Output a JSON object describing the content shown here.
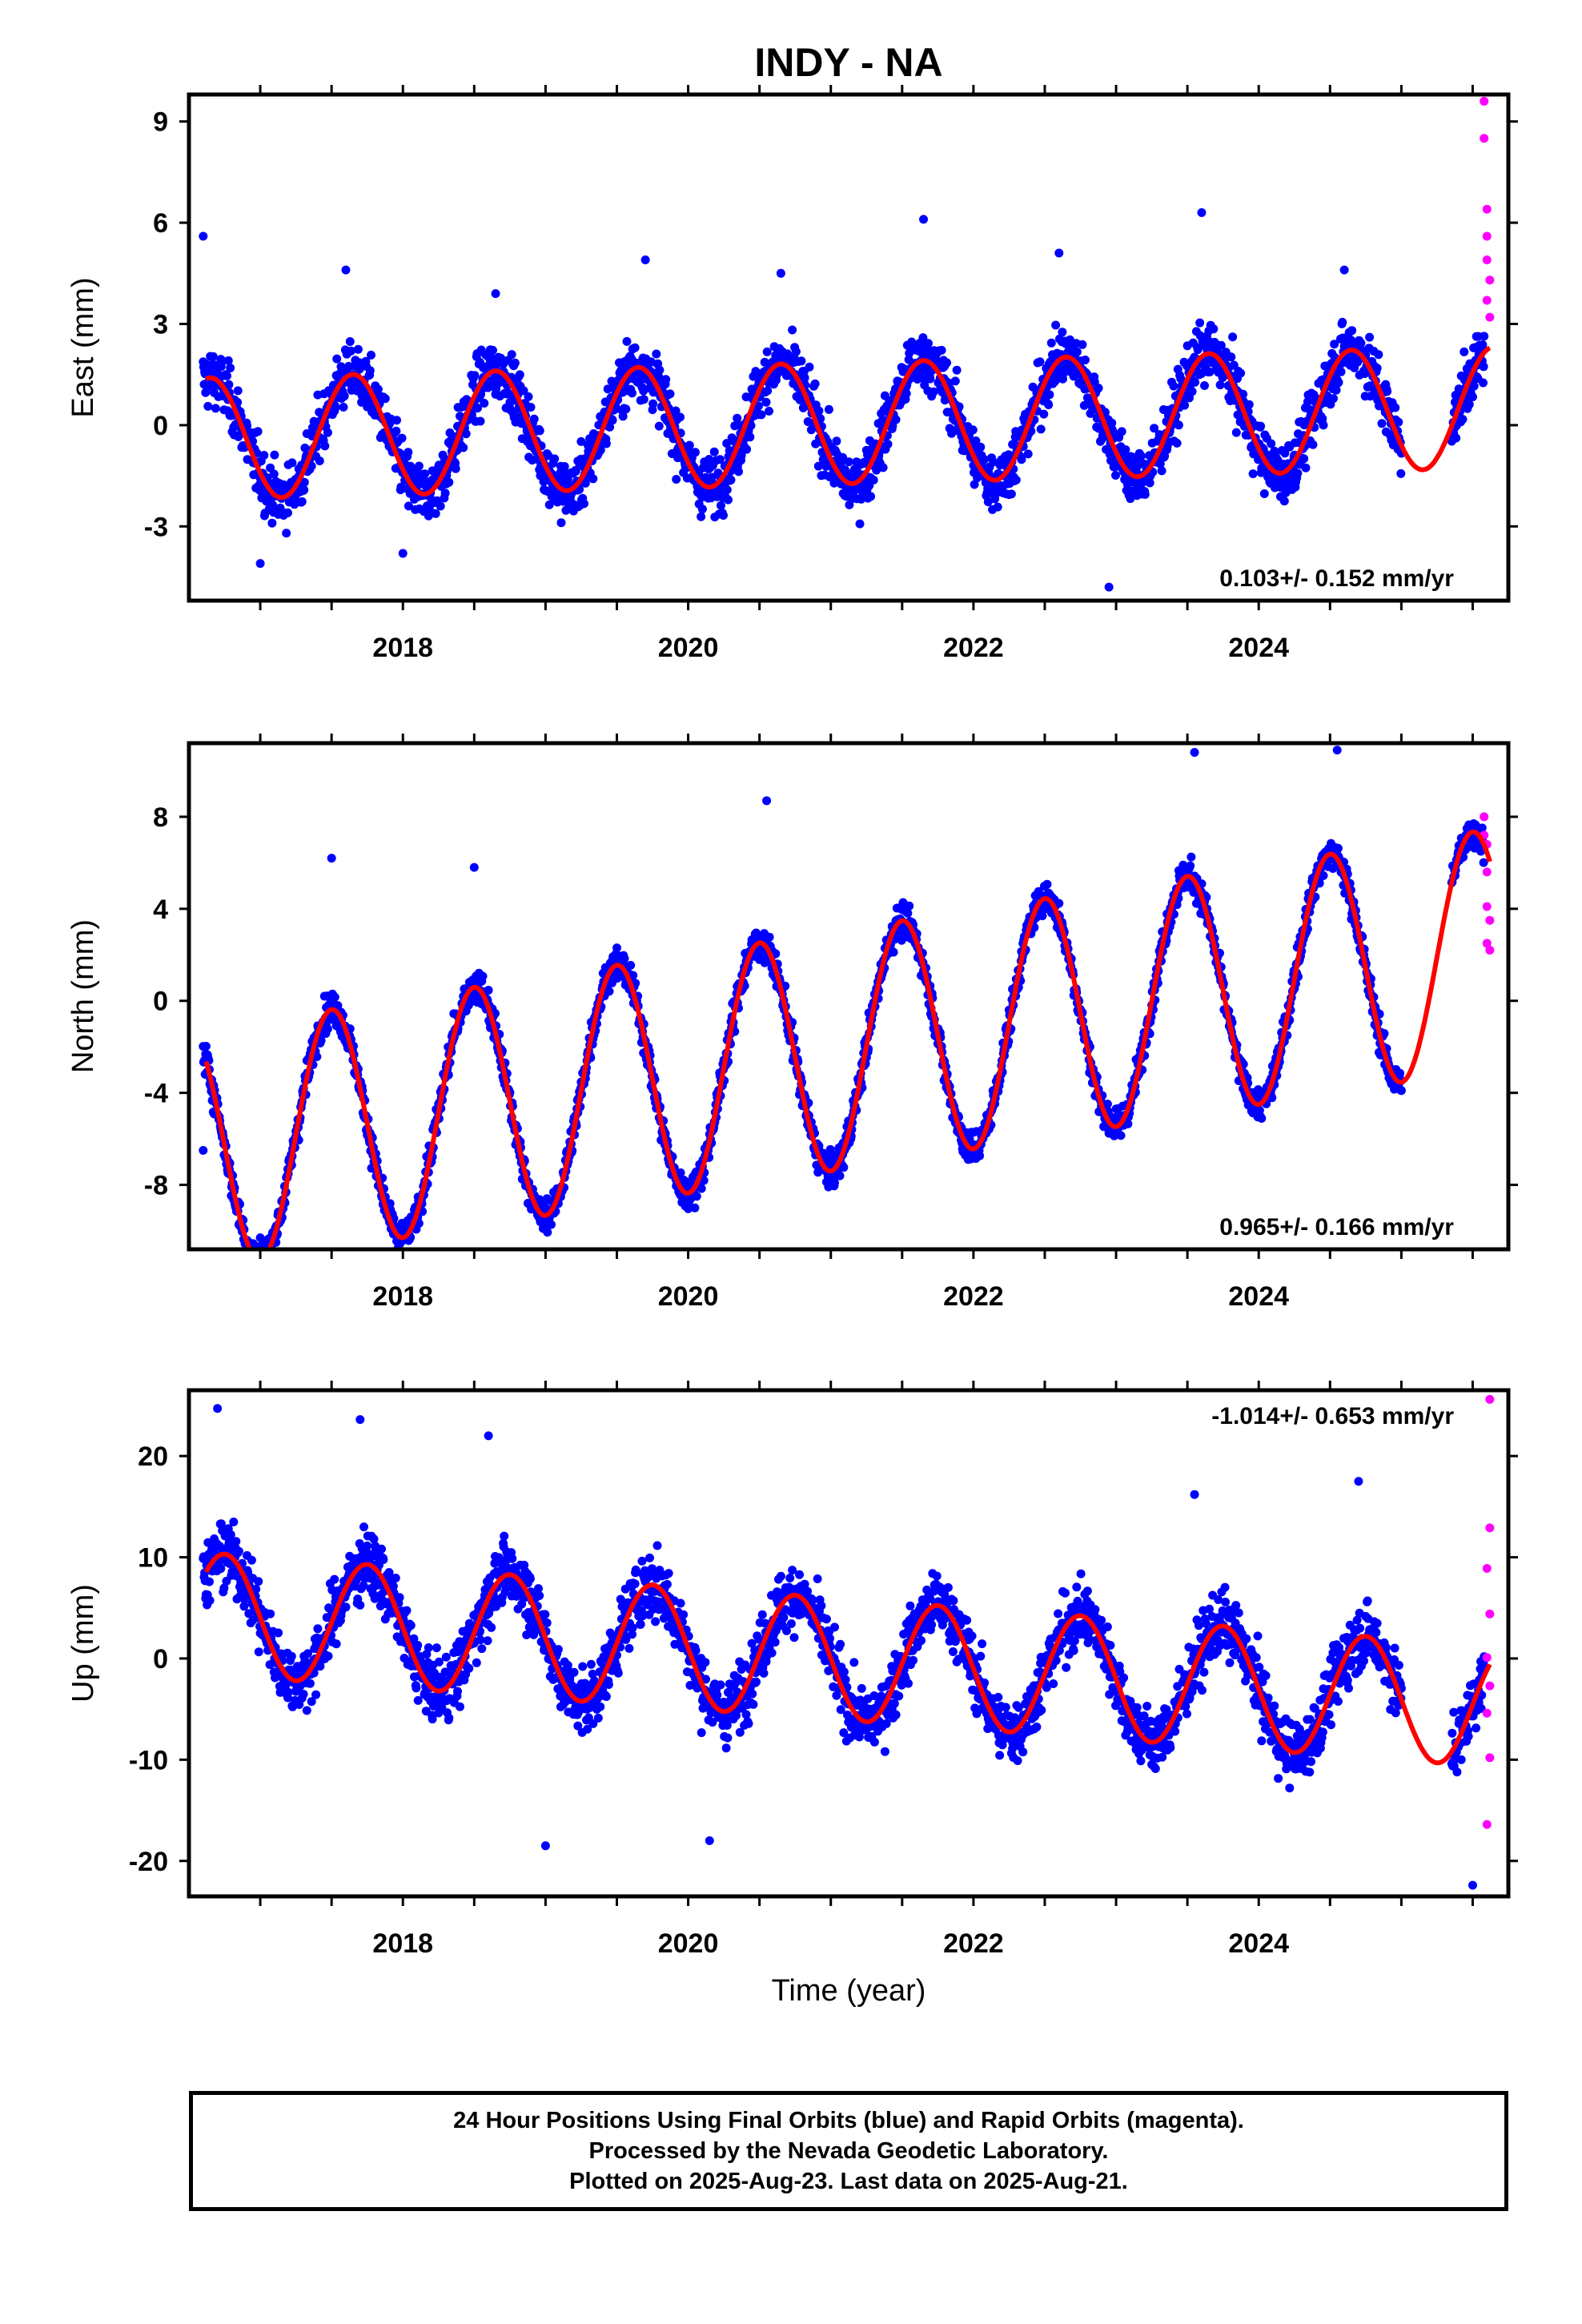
{
  "title": "INDY - NA",
  "chart_data": [
    {
      "type": "scatter",
      "panel": "east",
      "ylabel": "East (mm)",
      "xlabel": "",
      "xticks": [
        "2018",
        "2020",
        "2022",
        "2024"
      ],
      "yticks": [
        "9",
        "6",
        "3",
        "0",
        "-3"
      ],
      "xlim": [
        2016.5,
        2025.75
      ],
      "ylim": [
        -5.2,
        9.8
      ],
      "rate_label": "0.103+/- 0.152 mm/yr",
      "rate_position": "bottom-right",
      "grid": false,
      "colors": {
        "final": "#0000ff",
        "rapid": "#ff00ff",
        "model": "#ff0000"
      },
      "model": {
        "mean": 0.05,
        "trend": 0.103,
        "amplitude": 1.8,
        "peak_phase": 0.65
      },
      "scatter_sd": 1.1,
      "final_points": [
        {
          "x": 2016.6,
          "y": 5.6
        },
        {
          "x": 2017.0,
          "y": -4.1
        },
        {
          "x": 2017.6,
          "y": 4.6
        },
        {
          "x": 2018.0,
          "y": -3.8
        },
        {
          "x": 2018.65,
          "y": 3.9
        },
        {
          "x": 2019.7,
          "y": 4.9
        },
        {
          "x": 2020.65,
          "y": 4.5
        },
        {
          "x": 2021.65,
          "y": 6.1
        },
        {
          "x": 2022.6,
          "y": 5.1
        },
        {
          "x": 2022.95,
          "y": -4.8
        },
        {
          "x": 2023.6,
          "y": 6.3
        },
        {
          "x": 2024.6,
          "y": 4.6
        }
      ],
      "rapid_points": [
        {
          "x": 2025.58,
          "y": 9.6
        },
        {
          "x": 2025.58,
          "y": 8.5
        },
        {
          "x": 2025.6,
          "y": 6.4
        },
        {
          "x": 2025.6,
          "y": 5.6
        },
        {
          "x": 2025.6,
          "y": 4.9
        },
        {
          "x": 2025.62,
          "y": 4.3
        },
        {
          "x": 2025.6,
          "y": 3.7
        },
        {
          "x": 2025.62,
          "y": 3.2
        }
      ],
      "data_end": 2025.58
    },
    {
      "type": "scatter",
      "panel": "north",
      "ylabel": "North (mm)",
      "xlabel": "",
      "xticks": [
        "2018",
        "2020",
        "2022",
        "2024"
      ],
      "yticks": [
        "8",
        "4",
        "0",
        "-4",
        "-8"
      ],
      "xlim": [
        2016.5,
        2025.75
      ],
      "ylim": [
        -10.8,
        11.2
      ],
      "rate_label": "0.965+/- 0.166 mm/yr",
      "rate_position": "bottom-right",
      "grid": false,
      "colors": {
        "final": "#0000ff",
        "rapid": "#ff00ff",
        "model": "#ff0000"
      },
      "model": {
        "mean": -2.2,
        "trend": 0.965,
        "amplitude": 5.2,
        "peak_phase": 0.5
      },
      "scatter_sd": 0.9,
      "final_points": [
        {
          "x": 2016.6,
          "y": -6.5
        },
        {
          "x": 2017.0,
          "y": -10.3
        },
        {
          "x": 2017.5,
          "y": 6.2
        },
        {
          "x": 2018.0,
          "y": -9.9
        },
        {
          "x": 2018.5,
          "y": 5.8
        },
        {
          "x": 2019.0,
          "y": -9.0
        },
        {
          "x": 2020.55,
          "y": 8.7
        },
        {
          "x": 2024.55,
          "y": 10.9
        },
        {
          "x": 2023.55,
          "y": 10.8
        }
      ],
      "rapid_points": [
        {
          "x": 2025.58,
          "y": 8.0
        },
        {
          "x": 2025.58,
          "y": 7.2
        },
        {
          "x": 2025.6,
          "y": 6.8
        },
        {
          "x": 2025.6,
          "y": 5.6
        },
        {
          "x": 2025.6,
          "y": 4.1
        },
        {
          "x": 2025.62,
          "y": 3.5
        },
        {
          "x": 2025.6,
          "y": 2.5
        },
        {
          "x": 2025.62,
          "y": 2.2
        }
      ],
      "data_end": 2025.58
    },
    {
      "type": "scatter",
      "panel": "up",
      "ylabel": "Up (mm)",
      "xlabel": "Time (year)",
      "xticks": [
        "2018",
        "2020",
        "2022",
        "2024"
      ],
      "yticks": [
        "20",
        "10",
        "0",
        "-10",
        "-20"
      ],
      "xlim": [
        2016.5,
        2025.75
      ],
      "ylim": [
        -23.5,
        26.5
      ],
      "rate_label": "-1.014+/- 0.653 mm/yr",
      "rate_position": "top-right",
      "grid": false,
      "colors": {
        "final": "#0000ff",
        "rapid": "#ff00ff",
        "model": "#ff0000"
      },
      "model": {
        "mean": 0.0,
        "trend": -1.014,
        "amplitude": 6.0,
        "peak_phase": 0.75
      },
      "scatter_sd": 4.0,
      "final_points": [
        {
          "x": 2016.7,
          "y": 24.7
        },
        {
          "x": 2017.7,
          "y": 23.6
        },
        {
          "x": 2018.6,
          "y": 22.0
        },
        {
          "x": 2019.0,
          "y": -18.5
        },
        {
          "x": 2020.15,
          "y": -18.0
        },
        {
          "x": 2023.55,
          "y": 16.2
        },
        {
          "x": 2024.7,
          "y": 17.5
        },
        {
          "x": 2025.5,
          "y": -22.4
        }
      ],
      "rapid_points": [
        {
          "x": 2025.62,
          "y": 25.6
        },
        {
          "x": 2025.62,
          "y": 12.9
        },
        {
          "x": 2025.6,
          "y": 8.9
        },
        {
          "x": 2025.62,
          "y": 4.4
        },
        {
          "x": 2025.6,
          "y": 0.1
        },
        {
          "x": 2025.62,
          "y": -2.7
        },
        {
          "x": 2025.6,
          "y": -5.4
        },
        {
          "x": 2025.62,
          "y": -9.8
        },
        {
          "x": 2025.6,
          "y": -16.4
        }
      ],
      "data_end": 2025.58
    }
  ],
  "caption": {
    "line1": "24 Hour Positions Using Final Orbits (blue) and Rapid Orbits (magenta).",
    "line2": "Processed by the Nevada Geodetic Laboratory.",
    "line3": "Plotted on 2025-Aug-23. Last data on 2025-Aug-21."
  }
}
